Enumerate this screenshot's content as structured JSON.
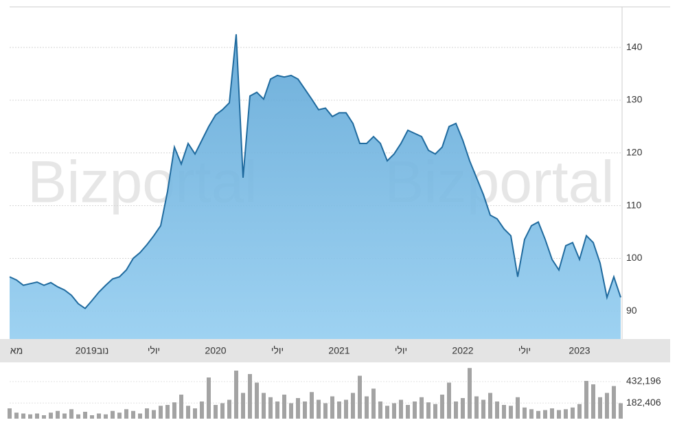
{
  "watermark": "Bizportal",
  "chart_data": [
    {
      "type": "area",
      "color": "#1f6a9e",
      "fill": "#7fbde8",
      "grid": true,
      "ylim": [
        84.7,
        147.7
      ],
      "yticks": [
        90,
        100,
        110,
        120,
        130,
        140
      ],
      "categories": [
        null,
        "מא",
        null,
        null,
        null,
        null,
        null,
        null,
        null,
        null,
        null,
        null,
        "2019נוב",
        null,
        null,
        null,
        null,
        null,
        null,
        null,
        null,
        "יולי",
        null,
        null,
        null,
        null,
        null,
        null,
        null,
        null,
        "2020",
        null,
        null,
        null,
        null,
        null,
        null,
        null,
        null,
        "יולי",
        null,
        null,
        null,
        null,
        null,
        null,
        null,
        null,
        "2021",
        null,
        null,
        null,
        null,
        null,
        null,
        null,
        null,
        "יולי",
        null,
        null,
        null,
        null,
        null,
        null,
        null,
        null,
        "2022",
        null,
        null,
        null,
        null,
        null,
        null,
        null,
        null,
        "יולי",
        null,
        null,
        null,
        null,
        null,
        null,
        null,
        "2023",
        null,
        null,
        null,
        null,
        null,
        null
      ],
      "values": [
        96.5,
        95.9,
        94.9,
        95.2,
        95.5,
        94.9,
        95.4,
        94.6,
        94.0,
        93.0,
        91.4,
        90.5,
        92.0,
        93.6,
        94.9,
        96.1,
        96.5,
        97.8,
        100.0,
        101.1,
        102.6,
        104.3,
        106.2,
        112.7,
        121.1,
        117.9,
        121.8,
        119.8,
        122.4,
        125.0,
        127.2,
        128.2,
        129.5,
        142.5,
        115.3,
        130.8,
        131.5,
        130.2,
        134.0,
        134.7,
        134.4,
        134.7,
        134.0,
        132.1,
        130.2,
        128.2,
        128.5,
        126.9,
        127.6,
        127.6,
        125.6,
        121.8,
        121.8,
        123.1,
        121.8,
        118.5,
        119.8,
        121.8,
        124.3,
        123.7,
        123.1,
        120.5,
        119.8,
        121.1,
        125.0,
        125.6,
        122.4,
        118.5,
        115.3,
        112.1,
        108.2,
        107.5,
        105.6,
        104.3,
        96.5,
        103.6,
        106.2,
        106.9,
        103.6,
        99.8,
        97.8,
        102.4,
        103.0,
        99.8,
        104.3,
        103.0,
        99.1,
        92.6,
        96.5,
        92.6
      ]
    },
    {
      "type": "bar",
      "color": "#a3a3a3",
      "ylim": [
        0,
        600000
      ],
      "yticks": [
        {
          "value": 182406,
          "label": "182,406"
        },
        {
          "value": 432196,
          "label": "432,196"
        }
      ],
      "values": [
        120000,
        70000,
        60000,
        50000,
        60000,
        40000,
        70000,
        90000,
        60000,
        110000,
        50000,
        80000,
        40000,
        60000,
        50000,
        90000,
        70000,
        110000,
        90000,
        60000,
        120000,
        100000,
        150000,
        160000,
        190000,
        280000,
        150000,
        120000,
        200000,
        480000,
        160000,
        180000,
        220000,
        560000,
        300000,
        520000,
        420000,
        300000,
        250000,
        200000,
        280000,
        180000,
        240000,
        200000,
        310000,
        220000,
        180000,
        260000,
        200000,
        220000,
        300000,
        500000,
        260000,
        350000,
        200000,
        150000,
        180000,
        220000,
        160000,
        200000,
        250000,
        190000,
        170000,
        280000,
        420000,
        200000,
        240000,
        590000,
        260000,
        220000,
        300000,
        200000,
        160000,
        150000,
        250000,
        130000,
        110000,
        90000,
        100000,
        120000,
        100000,
        110000,
        130000,
        170000,
        440000,
        400000,
        250000,
        300000,
        380000,
        180000
      ]
    }
  ]
}
